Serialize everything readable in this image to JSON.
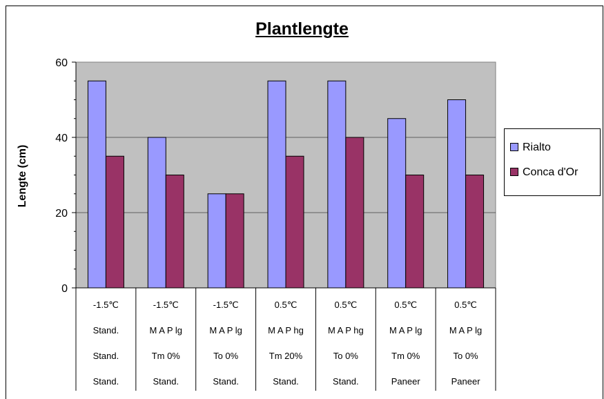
{
  "colors": {
    "plot_bg": "#c0c0c0",
    "rialto": "#9999ff",
    "conca": "#993366",
    "grid": "#000000"
  },
  "chart_data": {
    "type": "bar",
    "title": "Plantlengte",
    "ylabel": "Lengte (cm)",
    "xlabel": "",
    "ylim": [
      0,
      60
    ],
    "yticks": [
      "0",
      "20",
      "40",
      "60"
    ],
    "grid": true,
    "legend_position": "right",
    "categories": [
      [
        "-1.5℃",
        "Stand.",
        "Stand.",
        "Stand."
      ],
      [
        "-1.5℃",
        "M A P lg",
        "Tm 0%",
        "Stand."
      ],
      [
        "-1.5℃",
        "M A P lg",
        "To 0%",
        "Stand."
      ],
      [
        "0.5℃",
        "M A P hg",
        "Tm 20%",
        "Stand."
      ],
      [
        "0.5℃",
        "M A P hg",
        "To 0%",
        "Stand."
      ],
      [
        "0.5℃",
        "M A P lg",
        "Tm 0%",
        "Paneer"
      ],
      [
        "0.5℃",
        "M A P lg",
        "To 0%",
        "Paneer"
      ]
    ],
    "series": [
      {
        "name": "Rialto",
        "values": [
          55,
          40,
          25,
          55,
          55,
          45,
          50
        ]
      },
      {
        "name": "Conca d'Or",
        "values": [
          35,
          30,
          25,
          35,
          40,
          30,
          30
        ]
      }
    ]
  }
}
